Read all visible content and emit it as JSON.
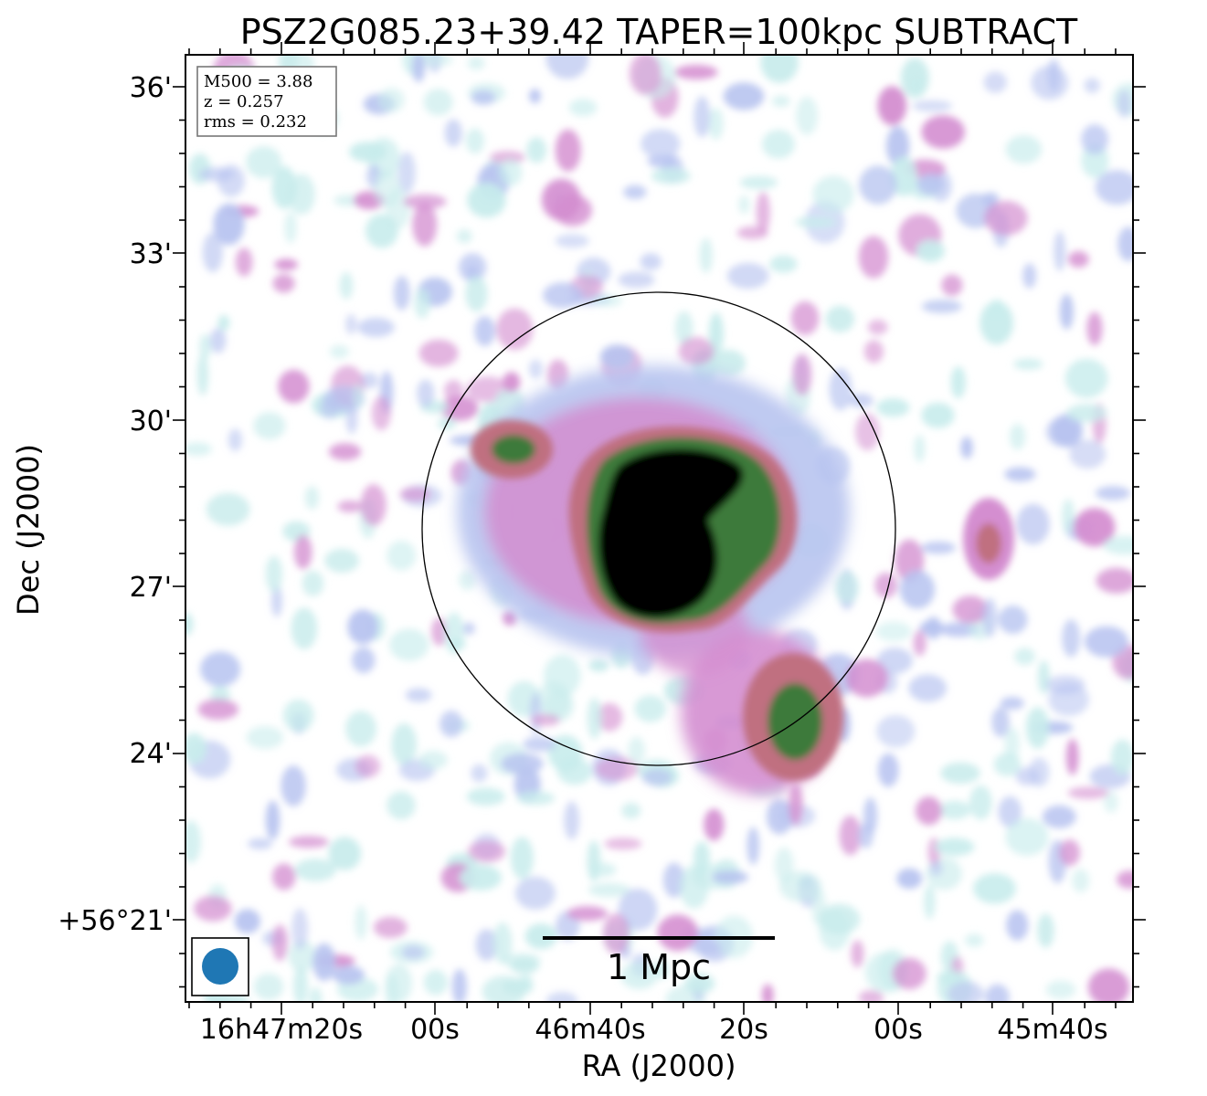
{
  "chart_data": {
    "type": "heatmap",
    "title": "PSZ2G085.23+39.42 TAPER=100kpc SUBTRACT",
    "xlabel": "RA (J2000)",
    "ylabel": "Dec (J2000)",
    "x_ticks": [
      "16h47m20s",
      "00s",
      "46m40s",
      "20s",
      "00s",
      "45m40s"
    ],
    "y_ticks": [
      "36'",
      "33'",
      "30'",
      "27'",
      "24'",
      "+56°21'"
    ],
    "info_box": [
      "M500 = 3.88",
      "z = 0.257",
      "rms = 0.232"
    ],
    "scalebar_label": "1 Mpc",
    "colormap": [
      "#ffffff",
      "#c8ecec",
      "#b8c4f0",
      "#d48ed0",
      "#c07080",
      "#3d7a3a",
      "#000000"
    ],
    "circle_color": "#000000",
    "beam_color": "#1f77b4",
    "components": [
      {
        "name": "central cluster emission",
        "level": "saturated (black core, green rim)"
      },
      {
        "name": "northwest blob",
        "level": "green"
      },
      {
        "name": "southwest extension",
        "level": "green"
      },
      {
        "name": "east blob",
        "level": "pink"
      }
    ]
  }
}
